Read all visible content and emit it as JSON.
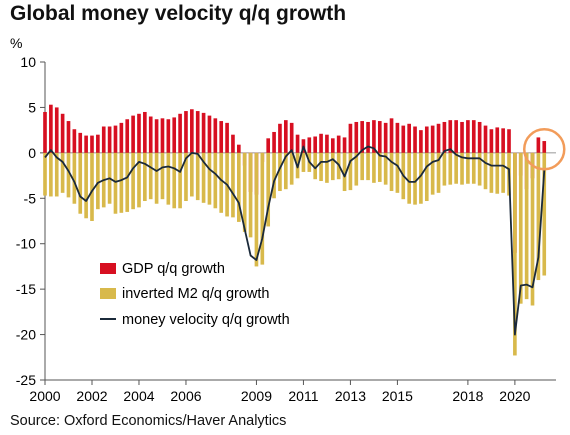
{
  "title": "Global money velocity q/q growth",
  "source": "Source: Oxford Economics/Haver Analytics",
  "colors": {
    "gdp": "#d70f21",
    "m2": "#d8b94b",
    "velocity": "#1b2a3a",
    "highlight": "#f29c5a"
  },
  "chart_data": {
    "type": "bar",
    "ylabel": "%",
    "ylim": [
      -25,
      10
    ],
    "yticks": [
      10,
      5,
      0,
      -5,
      -10,
      -15,
      -20,
      -25
    ],
    "xlim": [
      2000,
      2021.75
    ],
    "xticks": [
      {
        "x": 2000,
        "label": "2000"
      },
      {
        "x": 2002,
        "label": "2002"
      },
      {
        "x": 2004,
        "label": "2004"
      },
      {
        "x": 2006,
        "label": "2006"
      },
      {
        "x": 2009,
        "label": "2009"
      },
      {
        "x": 2011,
        "label": "2011"
      },
      {
        "x": 2013,
        "label": "2013"
      },
      {
        "x": 2015,
        "label": "2015"
      },
      {
        "x": 2018,
        "label": "2018"
      },
      {
        "x": 2020,
        "label": "2020"
      }
    ],
    "x": [
      2000.0,
      2000.25,
      2000.5,
      2000.75,
      2001.0,
      2001.25,
      2001.5,
      2001.75,
      2002.0,
      2002.25,
      2002.5,
      2002.75,
      2003.0,
      2003.25,
      2003.5,
      2003.75,
      2004.0,
      2004.25,
      2004.5,
      2004.75,
      2005.0,
      2005.25,
      2005.5,
      2005.75,
      2006.0,
      2006.25,
      2006.5,
      2006.75,
      2007.0,
      2007.25,
      2007.5,
      2007.75,
      2008.0,
      2008.25,
      2008.5,
      2008.75,
      2009.0,
      2009.25,
      2009.5,
      2009.75,
      2010.0,
      2010.25,
      2010.5,
      2010.75,
      2011.0,
      2011.25,
      2011.5,
      2011.75,
      2012.0,
      2012.25,
      2012.5,
      2012.75,
      2013.0,
      2013.25,
      2013.5,
      2013.75,
      2014.0,
      2014.25,
      2014.5,
      2014.75,
      2015.0,
      2015.25,
      2015.5,
      2015.75,
      2016.0,
      2016.25,
      2016.5,
      2016.75,
      2017.0,
      2017.25,
      2017.5,
      2017.75,
      2018.0,
      2018.25,
      2018.5,
      2018.75,
      2019.0,
      2019.25,
      2019.5,
      2019.75,
      2020.0,
      2020.25,
      2020.5,
      2020.75,
      2021.0,
      2021.25
    ],
    "series": [
      {
        "name": "GDP q/q growth",
        "kind": "bar",
        "values": [
          4.5,
          5.3,
          5.0,
          4.3,
          3.5,
          2.6,
          2.2,
          1.9,
          1.9,
          2.0,
          2.9,
          2.9,
          3.0,
          3.3,
          3.7,
          4.1,
          4.3,
          4.5,
          4.0,
          3.7,
          3.8,
          3.7,
          3.9,
          4.3,
          4.6,
          4.8,
          4.6,
          4.4,
          4.1,
          3.8,
          3.5,
          3.3,
          2.0,
          0.9,
          -1.4,
          -4.3,
          -4.6,
          -1.0,
          1.6,
          2.3,
          3.2,
          3.6,
          3.3,
          2.0,
          1.5,
          1.7,
          1.8,
          2.1,
          2.0,
          1.6,
          1.9,
          1.7,
          3.2,
          3.4,
          3.5,
          3.4,
          3.6,
          3.5,
          3.3,
          3.8,
          3.3,
          3.0,
          3.2,
          2.9,
          2.5,
          2.9,
          3.0,
          3.2,
          3.4,
          3.6,
          3.6,
          3.4,
          3.6,
          3.6,
          3.4,
          3.0,
          2.6,
          2.8,
          2.7,
          2.6,
          -11.0,
          -2.5,
          -4.0,
          -2.8,
          1.7,
          1.3
        ]
      },
      {
        "name": "inverted M2 q/q growth",
        "kind": "bar",
        "values": [
          -4.7,
          -4.8,
          -4.8,
          -4.4,
          -4.9,
          -5.6,
          -6.7,
          -7.2,
          -7.5,
          -6.2,
          -6.0,
          -5.6,
          -6.7,
          -6.6,
          -6.5,
          -6.2,
          -6.0,
          -5.3,
          -5.1,
          -5.6,
          -5.1,
          -5.7,
          -6.1,
          -6.1,
          -5.3,
          -4.8,
          -5.2,
          -5.5,
          -5.7,
          -6.1,
          -6.6,
          -7.0,
          -7.1,
          -7.6,
          -8.7,
          -9.3,
          -12.5,
          -12.3,
          -8.1,
          -5.0,
          -4.2,
          -4.0,
          -3.5,
          -2.8,
          -2.1,
          -2.1,
          -2.9,
          -3.1,
          -3.3,
          -3.0,
          -2.9,
          -4.2,
          -4.1,
          -3.6,
          -3.0,
          -3.0,
          -3.3,
          -3.2,
          -3.5,
          -4.2,
          -4.4,
          -5.1,
          -5.6,
          -5.7,
          -5.6,
          -5.3,
          -4.6,
          -4.4,
          -3.6,
          -3.5,
          -3.4,
          -3.5,
          -3.4,
          -3.4,
          -3.6,
          -4.0,
          -4.4,
          -4.5,
          -4.4,
          -4.7,
          -22.3,
          -16.6,
          -16.1,
          -16.8,
          -14.0,
          -13.5
        ]
      },
      {
        "name": "money velocity q/q growth",
        "kind": "line",
        "values": [
          -0.5,
          0.3,
          -0.5,
          -1.0,
          -2.0,
          -3.2,
          -4.8,
          -5.3,
          -4.2,
          -3.3,
          -3.0,
          -2.8,
          -3.2,
          -3.0,
          -2.7,
          -1.7,
          -1.0,
          -1.2,
          -1.6,
          -2.0,
          -1.6,
          -1.5,
          -1.7,
          -2.1,
          -0.6,
          0.0,
          -0.1,
          -1.0,
          -1.8,
          -2.3,
          -3.0,
          -3.5,
          -4.5,
          -5.5,
          -8.4,
          -11.3,
          -11.8,
          -9.4,
          -6.0,
          -3.1,
          -1.7,
          -0.4,
          0.3,
          -1.6,
          0.7,
          -1.0,
          -1.7,
          -1.0,
          -1.0,
          -0.7,
          -1.3,
          -2.6,
          -0.9,
          -0.4,
          0.3,
          0.7,
          0.5,
          -0.3,
          -0.4,
          -1.0,
          -1.4,
          -2.5,
          -3.2,
          -3.2,
          -2.5,
          -1.5,
          -1.0,
          -0.8,
          0.2,
          0.4,
          -0.2,
          -0.5,
          -0.6,
          -0.6,
          -0.6,
          -1.1,
          -1.4,
          -1.4,
          -1.4,
          -1.8,
          -20.0,
          -14.6,
          -14.5,
          -14.8,
          -11.5,
          -1.9
        ]
      }
    ],
    "legend": {
      "position": "bottom-left"
    }
  }
}
